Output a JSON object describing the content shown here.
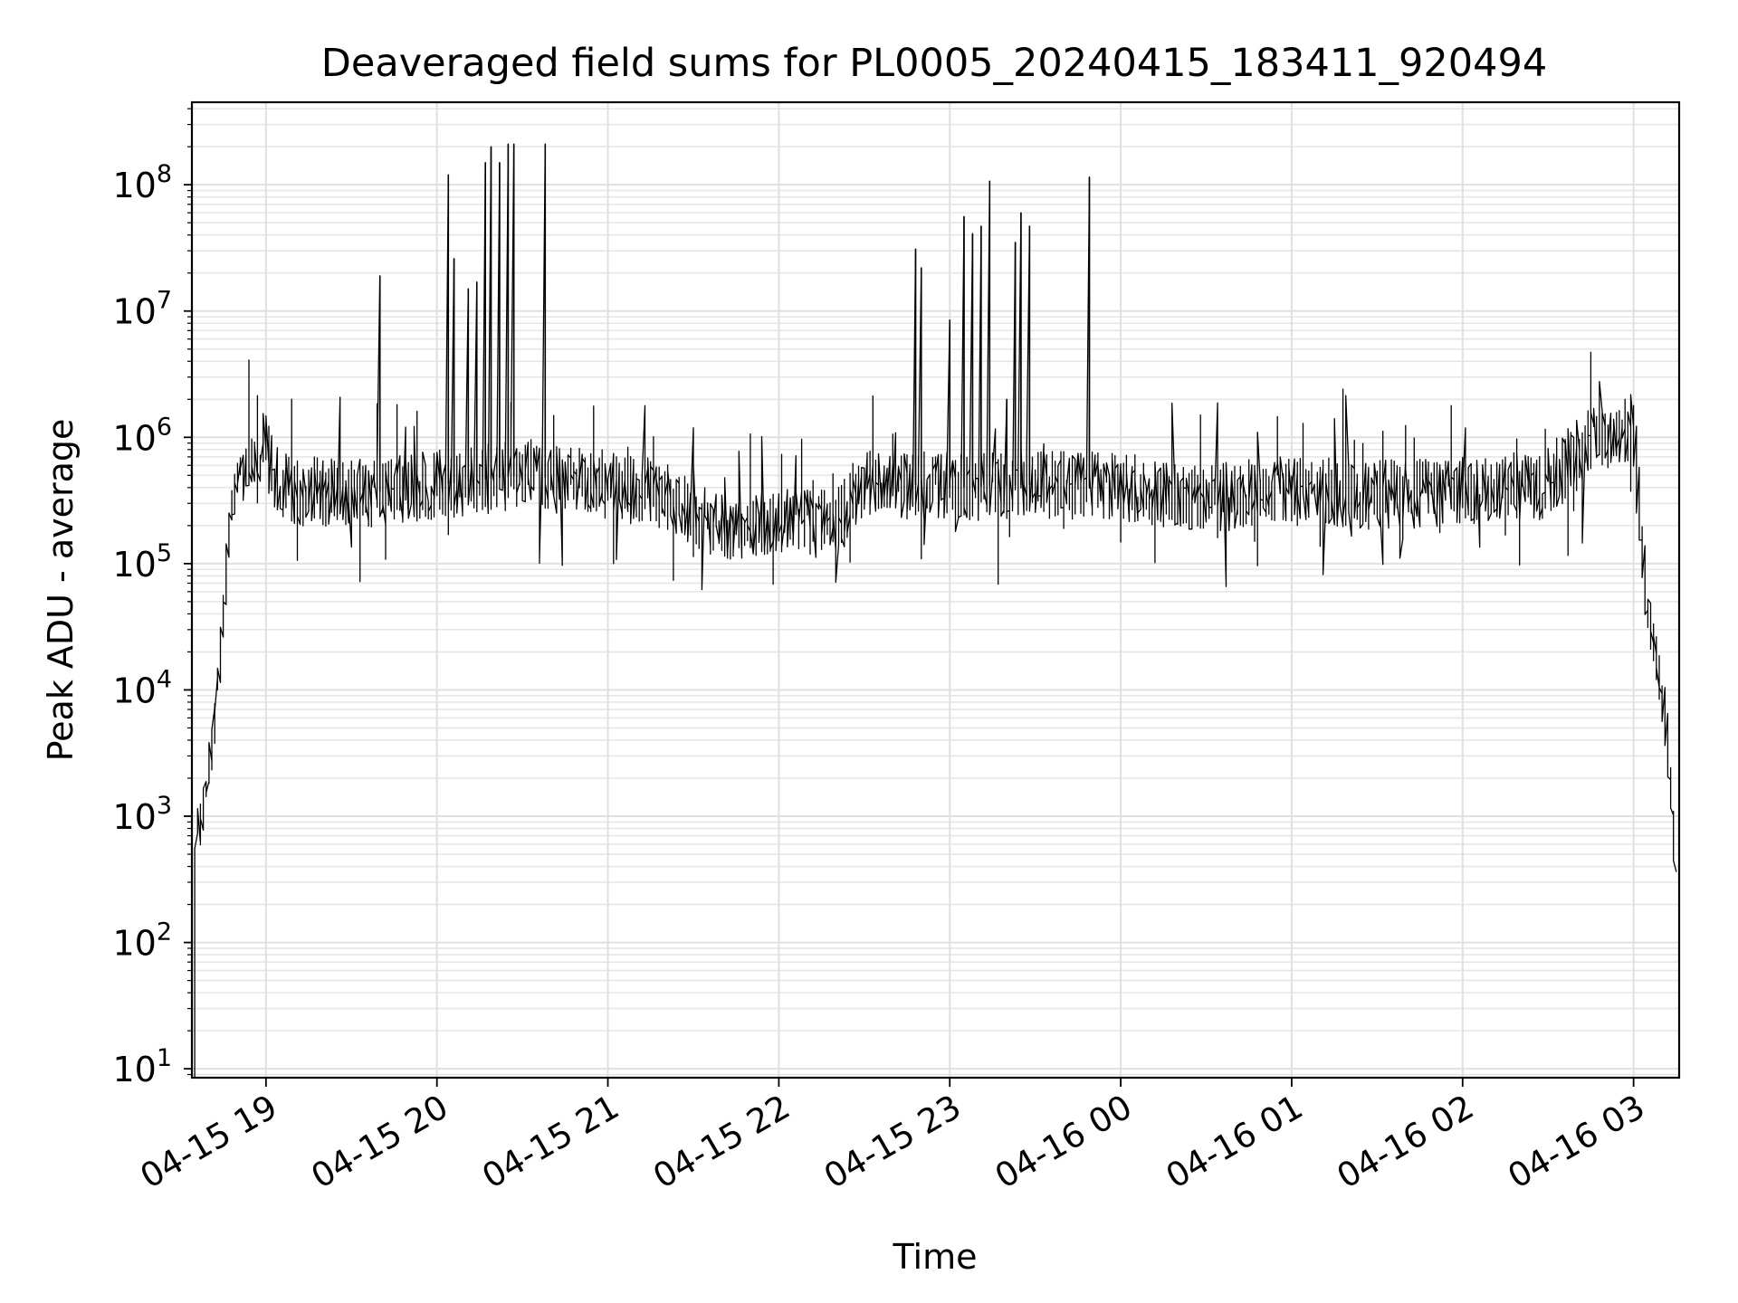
{
  "chart_data": {
    "type": "line",
    "title": "Deaveraged field sums for PL0005_20240415_183411_920494",
    "xlabel": "Time",
    "ylabel": "Peak ADU - average",
    "yscale": "log",
    "ylim": [
      8.5,
      450000000
    ],
    "xlim": [
      "2024-04-15 18:34",
      "2024-04-16 03:16"
    ],
    "grid": true,
    "grid_minor": true,
    "line_color": "#000000",
    "x_ticks": [
      {
        "t": "2024-04-15 19:00",
        "label": "04-15 19"
      },
      {
        "t": "2024-04-15 20:00",
        "label": "04-15 20"
      },
      {
        "t": "2024-04-15 21:00",
        "label": "04-15 21"
      },
      {
        "t": "2024-04-15 22:00",
        "label": "04-15 22"
      },
      {
        "t": "2024-04-15 23:00",
        "label": "04-15 23"
      },
      {
        "t": "2024-04-16 00:00",
        "label": "04-16 00"
      },
      {
        "t": "2024-04-16 01:00",
        "label": "04-16 01"
      },
      {
        "t": "2024-04-16 02:00",
        "label": "04-16 02"
      },
      {
        "t": "2024-04-16 03:00",
        "label": "04-16 03"
      }
    ],
    "y_ticks": [
      {
        "value": 10,
        "base": "10",
        "exp": "1"
      },
      {
        "value": 100,
        "base": "10",
        "exp": "2"
      },
      {
        "value": 1000,
        "base": "10",
        "exp": "3"
      },
      {
        "value": 10000,
        "base": "10",
        "exp": "4"
      },
      {
        "value": 100000,
        "base": "10",
        "exp": "5"
      },
      {
        "value": 1000000,
        "base": "10",
        "exp": "6"
      },
      {
        "value": 10000000,
        "base": "10",
        "exp": "7"
      },
      {
        "value": 100000000,
        "base": "10",
        "exp": "8"
      }
    ],
    "baseline": [
      [
        "2024-04-15 18:35",
        10
      ],
      [
        "2024-04-15 18:36",
        1000
      ],
      [
        "2024-04-15 18:38",
        800
      ],
      [
        "2024-04-15 18:40",
        2000
      ],
      [
        "2024-04-15 18:42",
        5000
      ],
      [
        "2024-04-15 18:44",
        15000
      ],
      [
        "2024-04-15 18:46",
        60000
      ],
      [
        "2024-04-15 18:48",
        250000
      ],
      [
        "2024-04-15 18:50",
        450000
      ],
      [
        "2024-04-15 18:53",
        550000
      ],
      [
        "2024-04-15 18:57",
        800000
      ],
      [
        "2024-04-15 19:00",
        900000
      ],
      [
        "2024-04-15 19:05",
        400000
      ],
      [
        "2024-04-15 19:30",
        350000
      ],
      [
        "2024-04-15 20:00",
        420000
      ],
      [
        "2024-04-15 20:30",
        500000
      ],
      [
        "2024-04-15 21:00",
        420000
      ],
      [
        "2024-04-15 21:20",
        350000
      ],
      [
        "2024-04-15 21:40",
        200000
      ],
      [
        "2024-04-15 22:00",
        220000
      ],
      [
        "2024-04-15 22:20",
        200000
      ],
      [
        "2024-04-15 22:30",
        450000
      ],
      [
        "2024-04-15 23:00",
        400000
      ],
      [
        "2024-04-15 23:30",
        420000
      ],
      [
        "2024-04-16 00:00",
        400000
      ],
      [
        "2024-04-16 00:30",
        330000
      ],
      [
        "2024-04-16 01:00",
        380000
      ],
      [
        "2024-04-16 01:30",
        350000
      ],
      [
        "2024-04-16 02:00",
        370000
      ],
      [
        "2024-04-16 02:30",
        420000
      ],
      [
        "2024-04-16 02:45",
        900000
      ],
      [
        "2024-04-16 03:00",
        1200000
      ],
      [
        "2024-04-16 03:02",
        400000
      ],
      [
        "2024-04-16 03:05",
        50000
      ],
      [
        "2024-04-16 03:08",
        20000
      ],
      [
        "2024-04-16 03:12",
        5000
      ],
      [
        "2024-04-16 03:15",
        500
      ]
    ],
    "spikes": [
      [
        "2024-04-15 19:40",
        19000000
      ],
      [
        "2024-04-15 20:04",
        120000000
      ],
      [
        "2024-04-15 20:06",
        26000000
      ],
      [
        "2024-04-15 20:11",
        15000000
      ],
      [
        "2024-04-15 20:14",
        17000000
      ],
      [
        "2024-04-15 20:17",
        150000000
      ],
      [
        "2024-04-15 20:19",
        200000000
      ],
      [
        "2024-04-15 20:22",
        150000000
      ],
      [
        "2024-04-15 20:25",
        210000000
      ],
      [
        "2024-04-15 20:27",
        210000000
      ],
      [
        "2024-04-15 20:38",
        210000000
      ],
      [
        "2024-04-15 22:48",
        31000000
      ],
      [
        "2024-04-15 22:50",
        22000000
      ],
      [
        "2024-04-15 23:00",
        8500000
      ],
      [
        "2024-04-15 23:05",
        56000000
      ],
      [
        "2024-04-15 23:08",
        41000000
      ],
      [
        "2024-04-15 23:11",
        47000000
      ],
      [
        "2024-04-15 23:14",
        107000000
      ],
      [
        "2024-04-15 23:20",
        2000000
      ],
      [
        "2024-04-15 23:23",
        35000000
      ],
      [
        "2024-04-15 23:25",
        60000000
      ],
      [
        "2024-04-15 23:28",
        47000000
      ],
      [
        "2024-04-15 23:49",
        115000000
      ]
    ]
  }
}
